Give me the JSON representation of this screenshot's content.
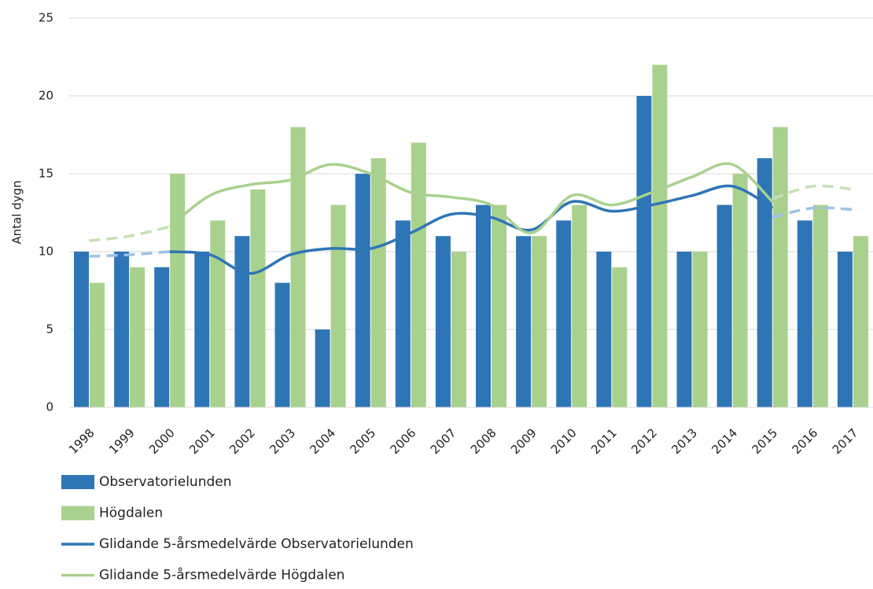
{
  "chart_data": {
    "type": "bar_line",
    "y_axis_label": "Antal dygn",
    "categories": [
      "1998",
      "1999",
      "2000",
      "2001",
      "2002",
      "2003",
      "2004",
      "2005",
      "2006",
      "2007",
      "2008",
      "2009",
      "2010",
      "2011",
      "2012",
      "2013",
      "2014",
      "2015",
      "2016",
      "2017"
    ],
    "ylim": [
      0,
      25
    ],
    "yticks": [
      0,
      5,
      10,
      15,
      20,
      25
    ],
    "grid": true,
    "series": [
      {
        "name": "Observatorielunden",
        "kind": "bar",
        "color": "#2e75b6",
        "values": [
          10,
          10,
          9,
          10,
          11,
          8,
          5,
          15,
          12,
          11,
          13,
          11,
          12,
          10,
          20,
          10,
          13,
          16,
          12,
          10
        ]
      },
      {
        "name": "Högdalen",
        "kind": "bar",
        "color": "#a9d18e",
        "values": [
          8,
          9,
          15,
          12,
          14,
          18,
          13,
          16,
          17,
          10,
          13,
          11,
          13,
          9,
          22,
          10,
          15,
          18,
          13,
          11
        ]
      },
      {
        "name": "Glidande 5-årsmedelvärde Observatorielunden",
        "kind": "line",
        "color": "#2e75b6",
        "dash_color": "#9dc3e6",
        "values": [
          null,
          null,
          10.0,
          9.8,
          8.6,
          9.8,
          10.2,
          10.2,
          11.2,
          12.4,
          12.2,
          11.4,
          13.2,
          12.6,
          13.0,
          13.6,
          14.2,
          12.8,
          null,
          null
        ],
        "dashed_values": [
          9.7,
          9.8,
          10.0,
          null,
          null,
          null,
          null,
          null,
          null,
          null,
          null,
          null,
          null,
          null,
          null,
          null,
          null,
          12.2,
          12.8,
          12.7
        ]
      },
      {
        "name": "Glidande 5-årsmedelvärde Högdalen",
        "kind": "line",
        "color": "#a9d18e",
        "dash_color": "#c5e0b4",
        "values": [
          null,
          null,
          11.6,
          13.6,
          14.3,
          14.6,
          15.6,
          15.0,
          13.8,
          13.5,
          13.0,
          11.2,
          13.6,
          13.0,
          13.8,
          14.8,
          15.6,
          13.2,
          null,
          null
        ],
        "dashed_values": [
          10.7,
          11.0,
          11.6,
          null,
          null,
          null,
          null,
          null,
          null,
          null,
          null,
          null,
          null,
          null,
          null,
          null,
          null,
          13.4,
          14.2,
          14.0
        ]
      }
    ]
  }
}
